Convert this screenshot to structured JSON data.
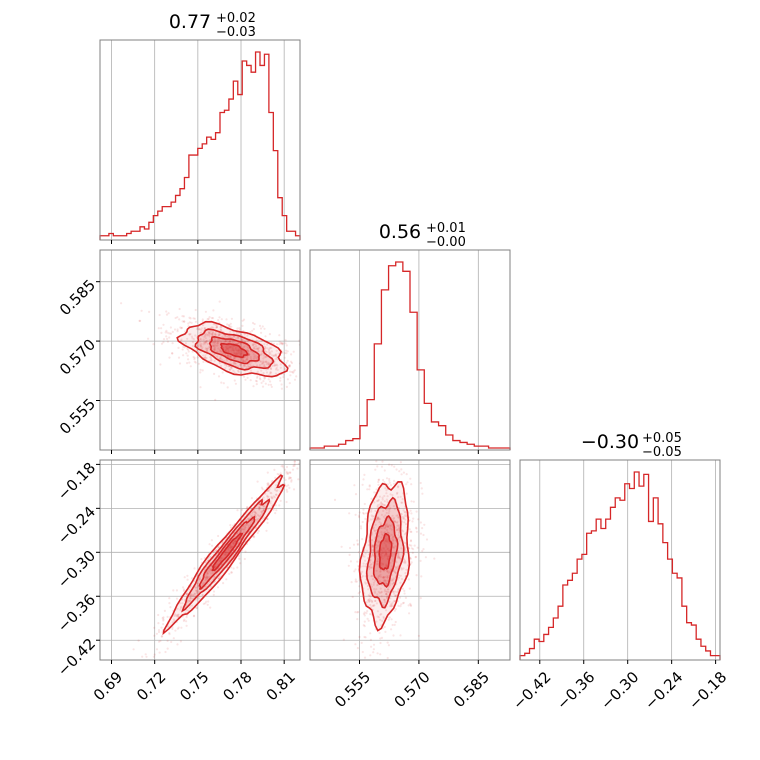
{
  "chart_data": {
    "type": "corner",
    "color": "#d62728",
    "grid": true,
    "parameters": [
      {
        "title": {
          "value": "0.77",
          "plus": "+0.02",
          "minus": "−0.03"
        },
        "range": [
          0.682,
          0.821
        ],
        "ticks": [
          0.69,
          0.72,
          0.75,
          0.78,
          0.81
        ],
        "tick_labels": [
          "0.69",
          "0.72",
          "0.75",
          "0.78",
          "0.81"
        ],
        "histogram": [
          1,
          1,
          2,
          1,
          1,
          1,
          2,
          3,
          3,
          5,
          4,
          7,
          10,
          12,
          14,
          14,
          16,
          19,
          22,
          27,
          37,
          37,
          40,
          42,
          45,
          44,
          47,
          56,
          57,
          62,
          70,
          64,
          79,
          77,
          74,
          83,
          77,
          82,
          56,
          39,
          18,
          10,
          3,
          3,
          1
        ]
      },
      {
        "title": {
          "value": "0.56",
          "plus": "+0.01",
          "minus": "−0.00"
        },
        "range": [
          0.5425,
          0.593
        ],
        "ticks": [
          0.555,
          0.57,
          0.585
        ],
        "tick_labels": [
          "0.555",
          "0.570",
          "0.585"
        ],
        "histogram": [
          0,
          0,
          1,
          1,
          2,
          4,
          5,
          12,
          26,
          56,
          85,
          98,
          100,
          95,
          73,
          42,
          24,
          14,
          12,
          7,
          4,
          3,
          2,
          1,
          1,
          0,
          0,
          0
        ]
      },
      {
        "title": {
          "value": "−0.30",
          "plus": "+0.05",
          "minus": "−0.05"
        },
        "range": [
          -0.447,
          -0.174
        ],
        "ticks": [
          -0.42,
          -0.36,
          -0.3,
          -0.24,
          -0.18
        ],
        "tick_labels": [
          "−0.42",
          "−0.36",
          "−0.30",
          "−0.24",
          "−0.18"
        ],
        "histogram": [
          1,
          2,
          4,
          8,
          7,
          10,
          13,
          17,
          22,
          31,
          33,
          36,
          42,
          44,
          53,
          54,
          59,
          55,
          59,
          64,
          68,
          67,
          74,
          72,
          79,
          73,
          78,
          58,
          68,
          57,
          49,
          42,
          36,
          34,
          22,
          15,
          14,
          8,
          5,
          3,
          1,
          1
        ]
      }
    ],
    "pairs": [
      {
        "x": 0,
        "y": 1,
        "center": [
          0.775,
          0.5677
        ],
        "spread": [
          0.018,
          0.0033
        ],
        "corr": -0.55
      },
      {
        "x": 0,
        "y": 2,
        "center": [
          0.77,
          -0.3
        ],
        "spread": [
          0.02,
          0.05
        ],
        "corr": 0.97
      },
      {
        "x": 1,
        "y": 2,
        "center": [
          0.5615,
          -0.3
        ],
        "spread": [
          0.003,
          0.048
        ],
        "corr": 0.25
      }
    ]
  }
}
